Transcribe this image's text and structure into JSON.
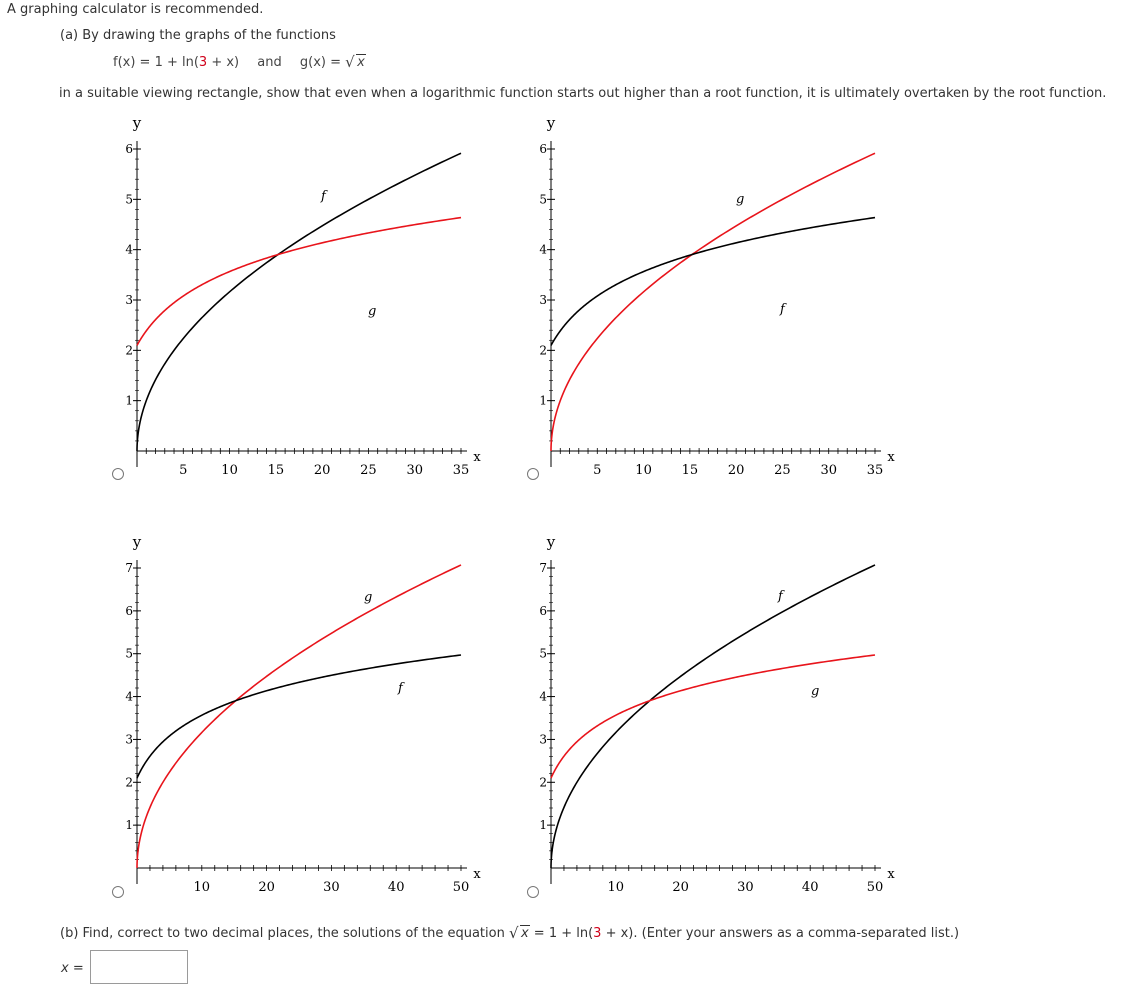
{
  "intro": "A graphing calculator is recommended.",
  "part_a": {
    "prefix": "(a) By drawing the graphs of the functions",
    "f_def_left": "f(x) = 1 + ln(",
    "f_def_red": "3",
    "f_def_right": " + x)",
    "and": "and",
    "g_def_left": "g(x) = ",
    "g_def_rad": "x",
    "statement": "in a suitable viewing rectangle, show that even when a logarithmic function starts out higher than a root function, it is ultimately overtaken by the root function."
  },
  "part_b": {
    "prefix": "(b) Find, correct to two decimal places, the solutions of the equation ",
    "eq_rad": "x",
    "eq_mid": " = 1 + ln(",
    "eq_red": "3",
    "eq_right": " + x).",
    "instruction": "  (Enter your answers as a comma-separated list.)",
    "answer_label": "x =",
    "answer_value": ""
  },
  "colors": {
    "red": "#e8141b",
    "black": "#000000"
  },
  "chart_data": [
    {
      "type": "line",
      "xlabel": "x",
      "ylabel": "y",
      "xlim": [
        0,
        35
      ],
      "ylim": [
        0,
        6
      ],
      "x_ticks": [
        5,
        10,
        15,
        20,
        25,
        30,
        35
      ],
      "y_ticks": [
        1,
        2,
        3,
        4,
        5,
        6
      ],
      "series": [
        {
          "name": "f",
          "color": "#000000",
          "curve": "sqrt"
        },
        {
          "name": "g",
          "color": "#e8141b",
          "curve": "log"
        }
      ]
    },
    {
      "type": "line",
      "xlabel": "x",
      "ylabel": "y",
      "xlim": [
        0,
        35
      ],
      "ylim": [
        0,
        6
      ],
      "x_ticks": [
        5,
        10,
        15,
        20,
        25,
        30,
        35
      ],
      "y_ticks": [
        1,
        2,
        3,
        4,
        5,
        6
      ],
      "series": [
        {
          "name": "g",
          "color": "#e8141b",
          "curve": "sqrt"
        },
        {
          "name": "f",
          "color": "#000000",
          "curve": "log"
        }
      ]
    },
    {
      "type": "line",
      "xlabel": "x",
      "ylabel": "y",
      "xlim": [
        0,
        50
      ],
      "ylim": [
        0,
        7
      ],
      "x_ticks": [
        10,
        20,
        30,
        40,
        50
      ],
      "y_ticks": [
        1,
        2,
        3,
        4,
        5,
        6,
        7
      ],
      "series": [
        {
          "name": "g",
          "color": "#e8141b",
          "curve": "sqrt"
        },
        {
          "name": "f",
          "color": "#000000",
          "curve": "log"
        }
      ]
    },
    {
      "type": "line",
      "xlabel": "x",
      "ylabel": "y",
      "xlim": [
        0,
        50
      ],
      "ylim": [
        0,
        7
      ],
      "x_ticks": [
        10,
        20,
        30,
        40,
        50
      ],
      "y_ticks": [
        1,
        2,
        3,
        4,
        5,
        6,
        7
      ],
      "series": [
        {
          "name": "f",
          "color": "#000000",
          "curve": "sqrt"
        },
        {
          "name": "g",
          "color": "#e8141b",
          "curve": "log"
        }
      ]
    }
  ]
}
